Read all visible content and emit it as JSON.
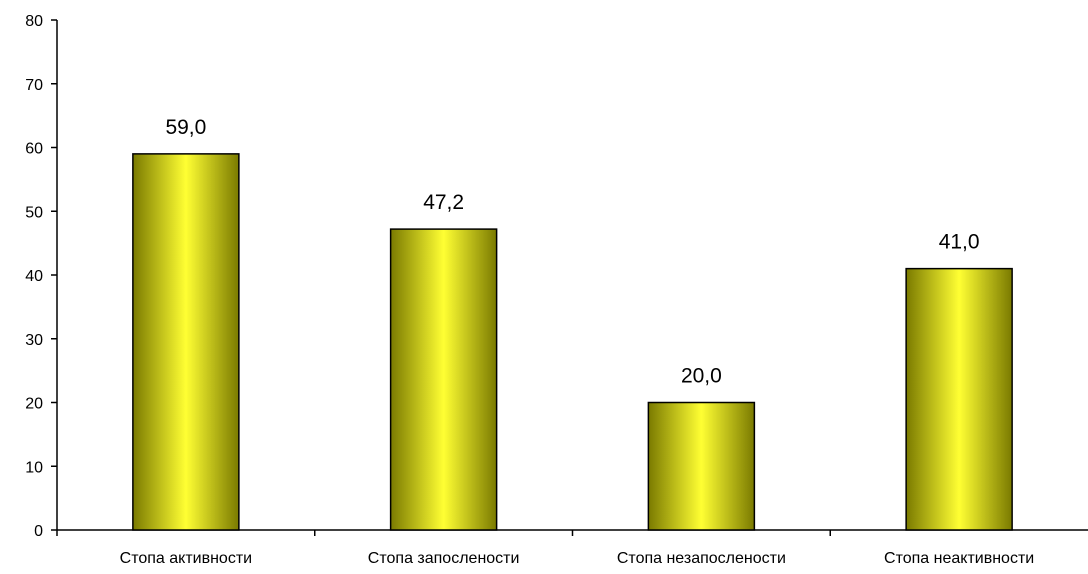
{
  "chart_data": {
    "type": "bar",
    "categories": [
      "Стопа активности",
      "Стопа запослености",
      "Стопа незапослености",
      "Стопа неактивности"
    ],
    "values": [
      59.0,
      47.2,
      20.0,
      41.0
    ],
    "data_labels": [
      "59,0",
      "47,2",
      "20,0",
      "41,0"
    ],
    "title": "",
    "xlabel": "",
    "ylabel": "",
    "ylim": [
      0,
      80
    ],
    "y_ticks": [
      0,
      10,
      20,
      30,
      40,
      50,
      60,
      70,
      80
    ],
    "grid": false,
    "legend": "none",
    "bar_color_light": "#ffff33",
    "bar_color_dark": "#7a7a00",
    "axis_color": "#000000"
  }
}
